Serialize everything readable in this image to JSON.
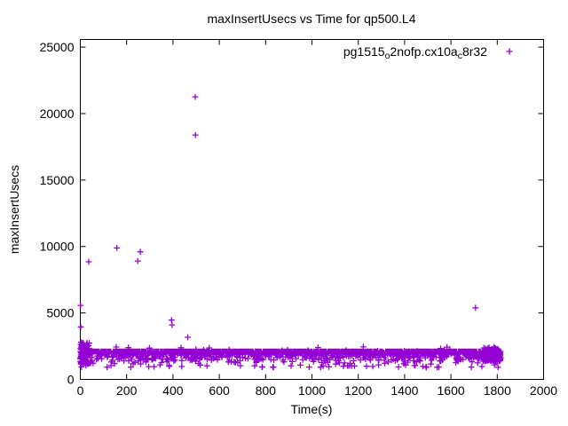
{
  "chart": {
    "title": "maxInsertUsecs vs Time for qp500.L4",
    "xlabel": "Time(s)",
    "ylabel": "maxInsertUsecs",
    "legend": {
      "label_plain": "pg1515_o2nofp.cx10a_c8r32",
      "parts": [
        {
          "text": "pg1515",
          "sub": false
        },
        {
          "text": "o",
          "sub": true
        },
        {
          "text": "2nofp.cx10a",
          "sub": false
        },
        {
          "text": "c",
          "sub": true
        },
        {
          "text": "8r32",
          "sub": false
        }
      ],
      "marker": "plus",
      "position": "top-right-inside"
    },
    "colors": {
      "series": "#9400d3",
      "axis": "#000000",
      "text": "#000000",
      "background": "#ffffff"
    }
  },
  "chart_data": {
    "type": "scatter",
    "title": "maxInsertUsecs vs Time for qp500.L4",
    "xlabel": "Time(s)",
    "ylabel": "maxInsertUsecs",
    "series_name": "pg1515_o2nofp.cx10a_c8r32",
    "marker": "plus",
    "color": "#9400d3",
    "xlim": [
      0,
      2000
    ],
    "ylim": [
      0,
      25000
    ],
    "xticks": [
      0,
      200,
      400,
      600,
      800,
      1000,
      1200,
      1400,
      1600,
      1800,
      2000
    ],
    "yticks": [
      0,
      5000,
      10000,
      15000,
      20000,
      25000
    ],
    "grid": false,
    "legend_position": "top-right",
    "outliers": [
      [
        1,
        5570
      ],
      [
        2,
        3950
      ],
      [
        3,
        2790
      ],
      [
        36,
        8850
      ],
      [
        158,
        9890
      ],
      [
        248,
        8910
      ],
      [
        259,
        9600
      ],
      [
        394,
        4460
      ],
      [
        396,
        4100
      ],
      [
        464,
        3170
      ],
      [
        496,
        21260
      ],
      [
        497,
        18390
      ],
      [
        1706,
        5390
      ]
    ],
    "band": {
      "description": "dense steady-state band of per-second samples",
      "x_min": 0,
      "x_max": 1816,
      "count": 1500,
      "y_min": 950,
      "y_max": 2100,
      "y_center": 1525,
      "spike_chance": 0.018,
      "spike_y_max": 2450,
      "low_chance": 0.03,
      "low_y_min": 900
    },
    "start_cluster": {
      "x_min": 0,
      "x_max": 45,
      "count": 90,
      "y_min": 1150,
      "y_max": 2750
    },
    "end_cluster": {
      "x_min": 1738,
      "x_max": 1816,
      "count": 130,
      "y_min": 1350,
      "y_max": 2430
    },
    "seed": 42
  }
}
